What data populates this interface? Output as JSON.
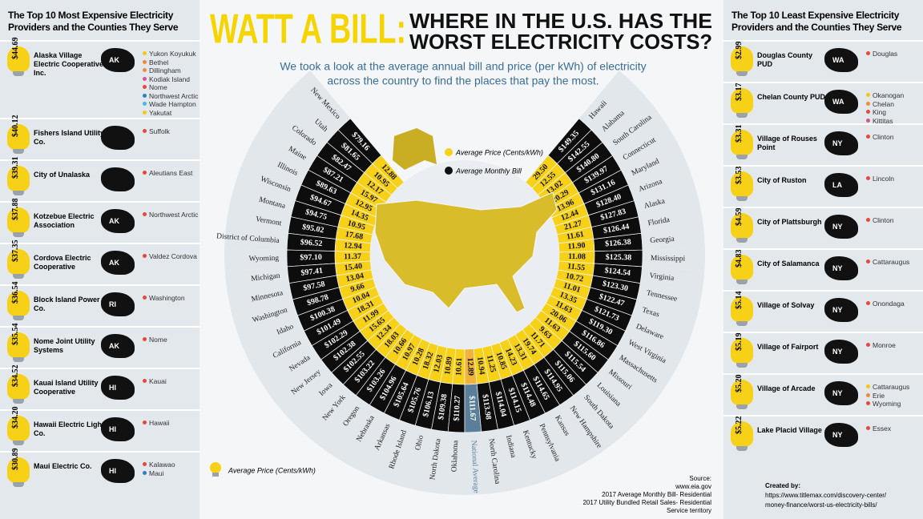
{
  "header": {
    "title_lead": "WATT A BILL:",
    "title_line1": "WHERE IN THE U.S. HAS THE",
    "title_line2": "WORST ELECTRICITY COSTS?",
    "subtitle_line1": "We took a look at the average annual bill and price (per kWh) of electricity",
    "subtitle_line2": "across the country to find the places that pay the most."
  },
  "left_panel": {
    "title": "The Top 10 Most Expensive Electricity Providers and the Counties They Serve",
    "providers": [
      {
        "price": "$44.69",
        "name": "Alaska Village Electric Cooperative Inc.",
        "state": "AK",
        "counties": [
          {
            "name": "Yukon Koyukuk",
            "color": "#f5c518"
          },
          {
            "name": "Bethel",
            "color": "#f08a3c"
          },
          {
            "name": "Dillingham",
            "color": "#f08a3c"
          },
          {
            "name": "Kodiak Island",
            "color": "#d4558f"
          },
          {
            "name": "Nome",
            "color": "#e8483b"
          },
          {
            "name": "Northwest Arctic",
            "color": "#2a7fc9"
          },
          {
            "name": "Wade Hampton",
            "color": "#47b6e0"
          },
          {
            "name": "Yakutat",
            "color": "#f5c518"
          }
        ]
      },
      {
        "price": "$40.12",
        "name": "Fishers Island Utility Co.",
        "counties": [
          {
            "name": "Suffolk",
            "color": "#e8483b"
          }
        ]
      },
      {
        "price": "$39.31",
        "name": "City of Unalaska",
        "counties": [
          {
            "name": "Aleutians East",
            "color": "#e8483b"
          }
        ]
      },
      {
        "price": "$37.88",
        "name": "Kotzebue Electric Association",
        "state": "AK",
        "counties": [
          {
            "name": "Northwest Arctic",
            "color": "#e8483b"
          }
        ]
      },
      {
        "price": "$37.35",
        "name": "Cordova Electric Cooperative",
        "state": "AK",
        "counties": [
          {
            "name": "Valdez Cordova",
            "color": "#e8483b"
          }
        ]
      },
      {
        "price": "$36.54",
        "name": "Block Island Power Co.",
        "state": "RI",
        "counties": [
          {
            "name": "Washington",
            "color": "#e8483b"
          }
        ]
      },
      {
        "price": "$35.54",
        "name": "Nome Joint Utility Systems",
        "state": "AK",
        "counties": [
          {
            "name": "Nome",
            "color": "#e8483b"
          }
        ]
      },
      {
        "price": "$34.52",
        "name": "Kauai Island Utility Cooperative",
        "state": "HI",
        "counties": [
          {
            "name": "Kauai",
            "color": "#e8483b"
          }
        ]
      },
      {
        "price": "$34.20",
        "name": "Hawaii Electric Light Co.",
        "state": "HI",
        "counties": [
          {
            "name": "Hawaii",
            "color": "#e8483b"
          }
        ]
      },
      {
        "price": "$30.89",
        "name": "Maui Electric Co.",
        "state": "HI",
        "counties": [
          {
            "name": "Kalawao",
            "color": "#e8483b"
          },
          {
            "name": "Maui",
            "color": "#2a7fc9"
          }
        ]
      }
    ]
  },
  "right_panel": {
    "title": "The Top 10 Least Expensive Electricity Providers and the Counties They Serve",
    "providers": [
      {
        "price": "$2.99",
        "name": "Douglas County PUD",
        "state": "WA",
        "counties": [
          {
            "name": "Douglas",
            "color": "#e8483b"
          }
        ]
      },
      {
        "price": "$3.17",
        "name": "Chelan County PUD",
        "state": "WA",
        "counties": [
          {
            "name": "Okanogan",
            "color": "#f5c518"
          },
          {
            "name": "Chelan",
            "color": "#f08a3c"
          },
          {
            "name": "King",
            "color": "#e8483b"
          },
          {
            "name": "Kittitas",
            "color": "#d4558f"
          }
        ]
      },
      {
        "price": "$3.31",
        "name": "Village of Rouses Point",
        "state": "NY",
        "counties": [
          {
            "name": "Clinton",
            "color": "#e8483b"
          }
        ]
      },
      {
        "price": "$3.53",
        "name": "City of Ruston",
        "state": "LA",
        "counties": [
          {
            "name": "Lincoln",
            "color": "#e8483b"
          }
        ]
      },
      {
        "price": "$4.59",
        "name": "City of Plattsburgh",
        "state": "NY",
        "counties": [
          {
            "name": "Clinton",
            "color": "#e8483b"
          }
        ]
      },
      {
        "price": "$4.83",
        "name": "City of Salamanca",
        "state": "NY",
        "counties": [
          {
            "name": "Cattaraugus",
            "color": "#e8483b"
          }
        ]
      },
      {
        "price": "$5.14",
        "name": "Village of Solvay",
        "state": "NY",
        "counties": [
          {
            "name": "Onondaga",
            "color": "#e8483b"
          }
        ]
      },
      {
        "price": "$5.19",
        "name": "Village of Fairport",
        "state": "NY",
        "counties": [
          {
            "name": "Monroe",
            "color": "#e8483b"
          }
        ]
      },
      {
        "price": "$5.20",
        "name": "Village of Arcade",
        "state": "NY",
        "counties": [
          {
            "name": "Cattaraugus",
            "color": "#f5c518"
          },
          {
            "name": "Erie",
            "color": "#f08a3c"
          },
          {
            "name": "Wyoming",
            "color": "#e8483b"
          }
        ]
      },
      {
        "price": "$5.22",
        "name": "Lake Placid Village",
        "state": "NY",
        "counties": [
          {
            "name": "Essex",
            "color": "#e8483b"
          }
        ]
      }
    ]
  },
  "radial": {
    "legend_price": "Average Price (Cents/kWh)",
    "legend_bill": "Average Monthly Bill",
    "items": [
      {
        "state": "New Mexico",
        "bill": "$79.16",
        "price": "12.88"
      },
      {
        "state": "Utah",
        "bill": "$81.65",
        "price": "10.95"
      },
      {
        "state": "Colorado",
        "bill": "$82.47",
        "price": "12.17"
      },
      {
        "state": "Maine",
        "bill": "$87.21",
        "price": "15.97"
      },
      {
        "state": "Illinois",
        "bill": "$89.63",
        "price": "12.95"
      },
      {
        "state": "Wisconsin",
        "bill": "$94.67",
        "price": "14.35"
      },
      {
        "state": "Montana",
        "bill": "$94.75",
        "price": "10.95"
      },
      {
        "state": "Vermont",
        "bill": "$95.02",
        "price": "17.68"
      },
      {
        "state": "District of Columbia",
        "bill": "$96.52",
        "price": "12.94"
      },
      {
        "state": "Wyoming",
        "bill": "$97.10",
        "price": "11.37"
      },
      {
        "state": "Michigan",
        "bill": "$97.41",
        "price": "15.40"
      },
      {
        "state": "Minnesota",
        "bill": "$97.58",
        "price": "13.04"
      },
      {
        "state": "Washington",
        "bill": "$98.78",
        "price": "9.66"
      },
      {
        "state": "Idaho",
        "bill": "$100.38",
        "price": "10.04"
      },
      {
        "state": "California",
        "bill": "$101.49",
        "price": "18.31"
      },
      {
        "state": "Nevada",
        "bill": "$102.29",
        "price": "11.99"
      },
      {
        "state": "New Jersey",
        "bill": "$102.38",
        "price": "15.65"
      },
      {
        "state": "Iowa",
        "bill": "$102.55",
        "price": "12.34"
      },
      {
        "state": "New York",
        "bill": "$103.22",
        "price": "18.03"
      },
      {
        "state": "Oregon",
        "bill": "$103.26",
        "price": "10.66"
      },
      {
        "state": "Nebraska",
        "bill": "$104.96",
        "price": "10.97"
      },
      {
        "state": "Arkansas",
        "bill": "$105.64",
        "price": "10.28"
      },
      {
        "state": "Rhode Island",
        "bill": "$105.76",
        "price": "18.32"
      },
      {
        "state": "Ohio",
        "bill": "$106.13",
        "price": "12.03"
      },
      {
        "state": "North Dakota",
        "bill": "$109.38",
        "price": "10.89"
      },
      {
        "state": "Oklahoma",
        "bill": "$110.27",
        "price": "10.61"
      },
      {
        "state": "National Average",
        "bill": "$111.67",
        "price": "12.89",
        "bill_color": "#5b7f98",
        "price_color": "#f0b43a"
      },
      {
        "state": "North Carolina",
        "bill": "$113.98",
        "price": "10.94"
      },
      {
        "state": "Indiana",
        "bill": "$114.04",
        "price": "11.25"
      },
      {
        "state": "Kentucky",
        "bill": "$114.15",
        "price": "10.85"
      },
      {
        "state": "Pennsylvania",
        "bill": "$114.48",
        "price": "14.23"
      },
      {
        "state": "Kansas",
        "bill": "$114.65",
        "price": "13.31"
      },
      {
        "state": "New Hampshire",
        "bill": "$114.95",
        "price": "19.74"
      },
      {
        "state": "South Dakota",
        "bill": "$115.06",
        "price": "11.71"
      },
      {
        "state": "Louisiana",
        "bill": "$115.54",
        "price": "9.63"
      },
      {
        "state": "Missouri",
        "bill": "$115.60",
        "price": "11.63"
      },
      {
        "state": "Massachusetts",
        "bill": "$116.86",
        "price": "20.06"
      },
      {
        "state": "West Virginia",
        "bill": "$119.30",
        "price": "11.63"
      },
      {
        "state": "Delaware",
        "bill": "$121.73",
        "price": "13.35"
      },
      {
        "state": "Texas",
        "bill": "$122.47",
        "price": "11.01"
      },
      {
        "state": "Tennessee",
        "bill": "$123.30",
        "price": "10.72"
      },
      {
        "state": "Virginia",
        "bill": "$124.54",
        "price": "11.55"
      },
      {
        "state": "Mississippi",
        "bill": "$125.38",
        "price": "11.08"
      },
      {
        "state": "Georgia",
        "bill": "$126.38",
        "price": "11.90"
      },
      {
        "state": "Florida",
        "bill": "$126.44",
        "price": "11.61"
      },
      {
        "state": "Alaska",
        "bill": "$127.83",
        "price": "21.27"
      },
      {
        "state": "Arizona",
        "bill": "$128.40",
        "price": "12.44"
      },
      {
        "state": "Maryland",
        "bill": "$131.16",
        "price": "13.96"
      },
      {
        "state": "Connecticut",
        "bill": "$139.97",
        "price": "20.29"
      },
      {
        "state": "South Carolina",
        "bill": "$140.80",
        "price": "13.02"
      },
      {
        "state": "Alabama",
        "bill": "$142.55",
        "price": "12.55"
      },
      {
        "state": "Hawaii",
        "bill": "$149.35",
        "price": "29.50"
      }
    ]
  },
  "footer_legend": "Average Price (Cents/kWh)",
  "source": [
    "Source:",
    "www.eia.gov",
    "2017 Average Monthly Bill- Residential",
    "2017 Utility Bundled Retail Sales- Residential",
    "Service territory"
  ],
  "credit": [
    "Created by:",
    "https://www.titlemax.com/discovery-center/",
    "money-finance/worst-us-electricity-bills/"
  ]
}
